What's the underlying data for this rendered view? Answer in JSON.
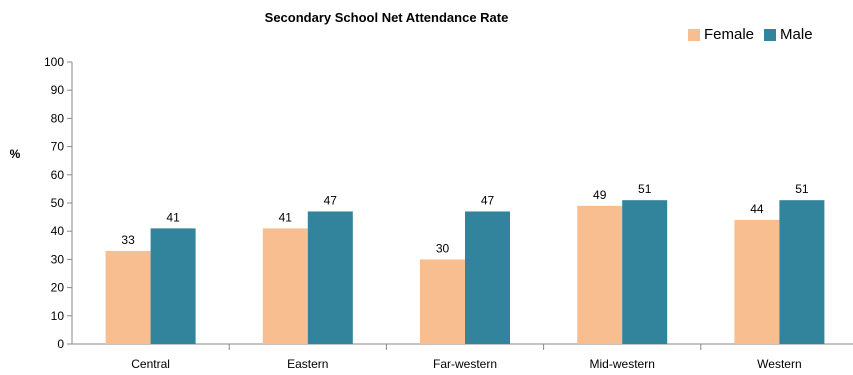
{
  "chart_data": {
    "type": "bar",
    "title": "Secondary School Net Attendance Rate",
    "ylabel": "%",
    "xlabel": "",
    "ylim": [
      0,
      100
    ],
    "yticks": [
      0,
      10,
      20,
      30,
      40,
      50,
      60,
      70,
      80,
      90,
      100
    ],
    "categories": [
      "Central",
      "Eastern",
      "Far-western",
      "Mid-western",
      "Western"
    ],
    "series": [
      {
        "name": "Female",
        "color": "#f9be8f",
        "values": [
          33,
          41,
          30,
          49,
          44
        ]
      },
      {
        "name": "Male",
        "color": "#31849b",
        "values": [
          41,
          47,
          47,
          51,
          51
        ]
      }
    ],
    "legend_position": "top-right",
    "grid": false
  }
}
